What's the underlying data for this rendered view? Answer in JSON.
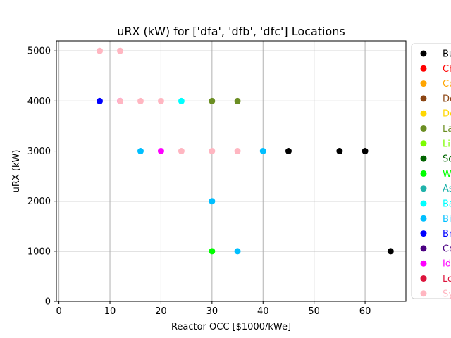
{
  "chart_data": {
    "type": "scatter",
    "title": "uRX (kW) for ['dfa', 'dfb', 'dfc'] Locations",
    "xlabel": "Reactor OCC [$1000/kWe]",
    "ylabel": "uRX (kW)",
    "xlim": [
      -0.5,
      68
    ],
    "ylim": [
      0,
      5200
    ],
    "xticks": [
      0,
      10,
      20,
      30,
      40,
      50,
      60
    ],
    "yticks": [
      0,
      1000,
      2000,
      3000,
      4000,
      5000
    ],
    "grid": true,
    "legend_position": "right",
    "series": [
      {
        "name": "Bu",
        "color": "#000000",
        "points": [
          [
            45,
            3000
          ],
          [
            55,
            3000
          ],
          [
            60,
            3000
          ],
          [
            65,
            1000
          ]
        ]
      },
      {
        "name": "Ch",
        "color": "#ff0000",
        "points": []
      },
      {
        "name": "Co",
        "color": "#ffa500",
        "points": []
      },
      {
        "name": "De",
        "color": "#8b4513",
        "points": []
      },
      {
        "name": "De",
        "color": "#ffd700",
        "points": []
      },
      {
        "name": "La",
        "color": "#6b8e23",
        "points": [
          [
            30,
            4000
          ],
          [
            35,
            4000
          ]
        ]
      },
      {
        "name": "Li",
        "color": "#7cfc00",
        "points": []
      },
      {
        "name": "So",
        "color": "#006400",
        "points": []
      },
      {
        "name": "W",
        "color": "#00ff00",
        "points": [
          [
            30,
            1000
          ]
        ]
      },
      {
        "name": "As",
        "color": "#20b2aa",
        "points": []
      },
      {
        "name": "Ba",
        "color": "#00ffff",
        "points": [
          [
            24,
            4000
          ]
        ]
      },
      {
        "name": "Bi",
        "color": "#00bfff",
        "points": [
          [
            16,
            3000
          ],
          [
            30,
            2000
          ],
          [
            35,
            1000
          ],
          [
            40,
            3000
          ]
        ]
      },
      {
        "name": "Br",
        "color": "#0000ff",
        "points": [
          [
            8,
            4000
          ]
        ]
      },
      {
        "name": "Co",
        "color": "#4b0082",
        "points": []
      },
      {
        "name": "Id",
        "color": "#ff00ff",
        "points": [
          [
            12,
            4000
          ],
          [
            20,
            3000
          ]
        ]
      },
      {
        "name": "Lo",
        "color": "#dc143c",
        "points": []
      },
      {
        "name": "Sy",
        "color": "#ffb6c1",
        "points": [
          [
            8,
            5000
          ],
          [
            12,
            5000
          ],
          [
            12,
            4000
          ],
          [
            16,
            4000
          ],
          [
            20,
            4000
          ],
          [
            24,
            3000
          ],
          [
            30,
            3000
          ],
          [
            35,
            3000
          ]
        ]
      }
    ]
  }
}
